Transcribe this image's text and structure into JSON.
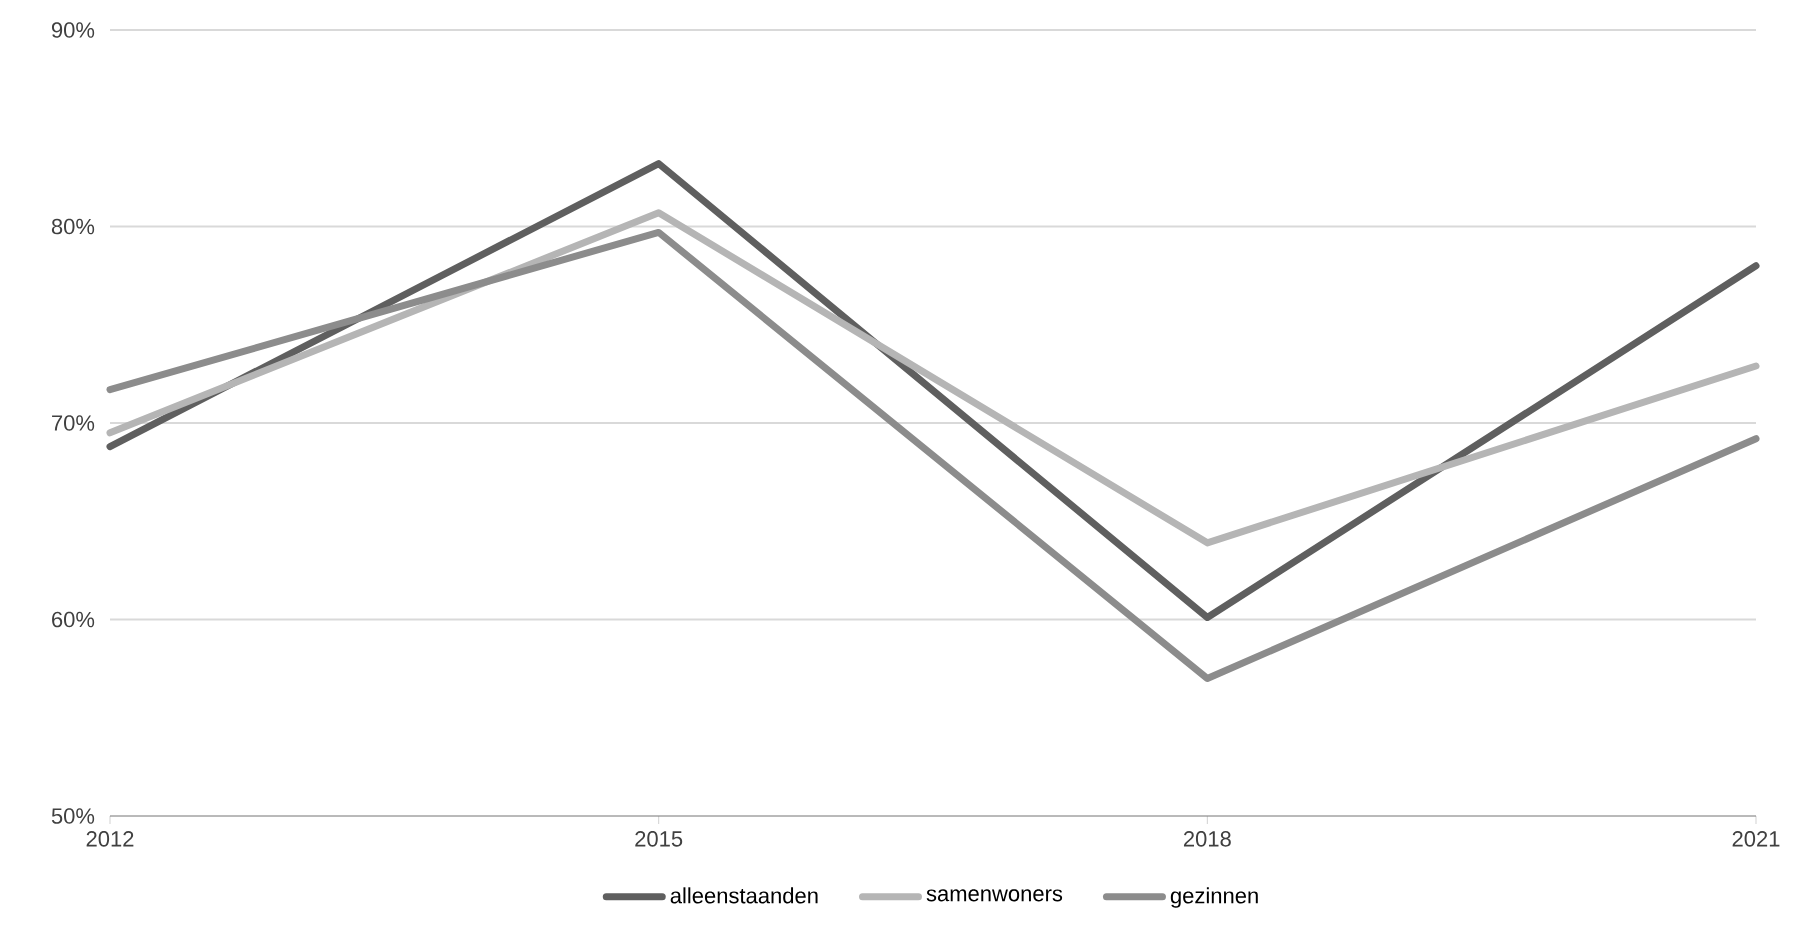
{
  "chart_data": {
    "type": "line",
    "x": [
      2012,
      2015,
      2018,
      2021
    ],
    "series": [
      {
        "name": "alleenstaanden",
        "color": "#5f5f5f",
        "values": [
          68.8,
          83.2,
          60.1,
          78.0
        ]
      },
      {
        "name": "samenwoners",
        "color": "#b5b5b5",
        "values": [
          69.5,
          80.7,
          63.9,
          72.9
        ]
      },
      {
        "name": "gezinnen",
        "color": "#8c8c8c",
        "values": [
          71.7,
          79.7,
          57.0,
          69.2
        ]
      }
    ],
    "xlim": [
      2012,
      2021
    ],
    "xticks": [
      2012,
      2015,
      2018,
      2021
    ],
    "ylim": [
      50,
      90
    ],
    "yticks": [
      {
        "value": 50,
        "label": "50%"
      },
      {
        "value": 60,
        "label": "60%"
      },
      {
        "value": 70,
        "label": "70%"
      },
      {
        "value": 80,
        "label": "80%"
      },
      {
        "value": 90,
        "label": "90%"
      }
    ],
    "grid": "y",
    "legend": "bottom",
    "marker": "none",
    "line_style": "solid"
  }
}
